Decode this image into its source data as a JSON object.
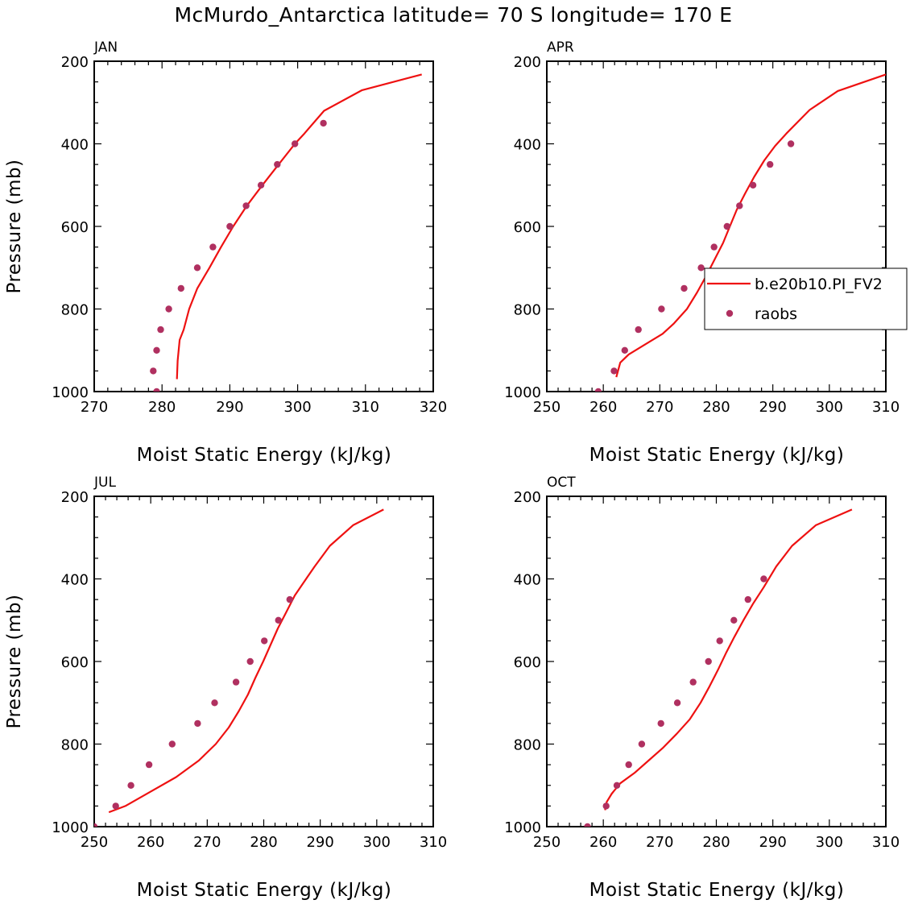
{
  "figure_title": "McMurdo_Antarctica  latitude= 70 S longitude= 170 E",
  "colors": {
    "model_line": "#ee1111",
    "obs_marker": "#b03060",
    "axis": "#000000"
  },
  "legend": {
    "entries": [
      {
        "label": "b.e20b10.PI_FV2",
        "kind": "line"
      },
      {
        "label": "raobs",
        "kind": "marker"
      }
    ]
  },
  "chart_data": [
    {
      "type": "line",
      "title": "JAN",
      "xlabel": "Moist Static Energy (kJ/kg)",
      "ylabel": "Pressure (mb)",
      "xlim": [
        270,
        320
      ],
      "ylim": [
        200,
        1000
      ],
      "y_inverted": true,
      "xticks": [
        270,
        280,
        290,
        300,
        310,
        320
      ],
      "yticks": [
        200,
        400,
        600,
        800,
        1000
      ],
      "show_legend": false,
      "series": [
        {
          "name": "b.e20b10.PI_FV2",
          "kind": "line",
          "points": [
            [
              282.2,
              970
            ],
            [
              282.3,
              925
            ],
            [
              282.6,
              875
            ],
            [
              283.2,
              850
            ],
            [
              284.0,
              800
            ],
            [
              285.2,
              750
            ],
            [
              287.0,
              700
            ],
            [
              288.7,
              650
            ],
            [
              290.5,
              600
            ],
            [
              292.5,
              550
            ],
            [
              294.8,
              500
            ],
            [
              297.2,
              450
            ],
            [
              299.6,
              400
            ],
            [
              301.0,
              375
            ],
            [
              303.9,
              320
            ],
            [
              309.5,
              270
            ],
            [
              318.3,
              232
            ]
          ]
        },
        {
          "name": "raobs",
          "kind": "marker",
          "points": [
            [
              279.2,
              1000
            ],
            [
              278.7,
              950
            ],
            [
              279.2,
              900
            ],
            [
              279.8,
              850
            ],
            [
              281.0,
              800
            ],
            [
              282.8,
              750
            ],
            [
              285.2,
              700
            ],
            [
              287.5,
              650
            ],
            [
              290.0,
              600
            ],
            [
              292.4,
              550
            ],
            [
              294.6,
              500
            ],
            [
              297.0,
              450
            ],
            [
              299.6,
              400
            ],
            [
              303.8,
              350
            ]
          ]
        }
      ]
    },
    {
      "type": "line",
      "title": "APR",
      "xlabel": "Moist Static Energy (kJ/kg)",
      "ylabel": "Pressure (mb)",
      "xlim": [
        250,
        310
      ],
      "ylim": [
        200,
        1000
      ],
      "y_inverted": true,
      "xticks": [
        250,
        260,
        270,
        280,
        290,
        300,
        310
      ],
      "yticks": [
        200,
        400,
        600,
        800,
        1000
      ],
      "show_legend": true,
      "series": [
        {
          "name": "b.e20b10.PI_FV2",
          "kind": "line",
          "points": [
            [
              262.3,
              965
            ],
            [
              263.0,
              930
            ],
            [
              264.5,
              910
            ],
            [
              267.5,
              885
            ],
            [
              270.5,
              860
            ],
            [
              272.5,
              835
            ],
            [
              274.8,
              800
            ],
            [
              276.6,
              760
            ],
            [
              278.2,
              720
            ],
            [
              279.7,
              680
            ],
            [
              281.2,
              640
            ],
            [
              282.4,
              600
            ],
            [
              283.6,
              560
            ],
            [
              285.1,
              520
            ],
            [
              286.7,
              480
            ],
            [
              288.5,
              440
            ],
            [
              290.4,
              405
            ],
            [
              292.4,
              375
            ],
            [
              296.5,
              318
            ],
            [
              301.5,
              272
            ],
            [
              310.0,
              232
            ]
          ]
        },
        {
          "name": "raobs",
          "kind": "marker",
          "points": [
            [
              259.1,
              1000
            ],
            [
              261.9,
              950
            ],
            [
              263.8,
              900
            ],
            [
              266.2,
              850
            ],
            [
              270.3,
              800
            ],
            [
              274.3,
              750
            ],
            [
              277.3,
              700
            ],
            [
              279.6,
              650
            ],
            [
              281.9,
              600
            ],
            [
              284.1,
              550
            ],
            [
              286.5,
              500
            ],
            [
              289.5,
              450
            ],
            [
              293.2,
              400
            ]
          ]
        }
      ]
    },
    {
      "type": "line",
      "title": "JUL",
      "xlabel": "Moist Static Energy (kJ/kg)",
      "ylabel": "Pressure (mb)",
      "xlim": [
        250,
        310
      ],
      "ylim": [
        200,
        1000
      ],
      "y_inverted": true,
      "xticks": [
        250,
        260,
        270,
        280,
        290,
        300,
        310
      ],
      "yticks": [
        200,
        400,
        600,
        800,
        1000
      ],
      "show_legend": false,
      "series": [
        {
          "name": "b.e20b10.PI_FV2",
          "kind": "line",
          "points": [
            [
              252.6,
              965
            ],
            [
              255.5,
              950
            ],
            [
              260.0,
              915
            ],
            [
              264.5,
              880
            ],
            [
              268.5,
              840
            ],
            [
              271.5,
              800
            ],
            [
              273.8,
              760
            ],
            [
              275.6,
              720
            ],
            [
              277.2,
              680
            ],
            [
              278.5,
              640
            ],
            [
              279.9,
              600
            ],
            [
              281.2,
              560
            ],
            [
              282.5,
              520
            ],
            [
              284.0,
              480
            ],
            [
              285.5,
              440
            ],
            [
              287.0,
              410
            ],
            [
              289.0,
              370
            ],
            [
              291.7,
              320
            ],
            [
              295.8,
              270
            ],
            [
              301.2,
              232
            ]
          ]
        },
        {
          "name": "raobs",
          "kind": "marker",
          "points": [
            [
              250.0,
              1000
            ],
            [
              253.8,
              950
            ],
            [
              256.5,
              900
            ],
            [
              259.7,
              850
            ],
            [
              263.8,
              800
            ],
            [
              268.3,
              750
            ],
            [
              271.3,
              700
            ],
            [
              275.1,
              650
            ],
            [
              277.6,
              600
            ],
            [
              280.1,
              550
            ],
            [
              282.6,
              500
            ],
            [
              284.6,
              450
            ]
          ]
        }
      ]
    },
    {
      "type": "line",
      "title": "OCT",
      "xlabel": "Moist Static Energy (kJ/kg)",
      "ylabel": "Pressure (mb)",
      "xlim": [
        250,
        310
      ],
      "ylim": [
        200,
        1000
      ],
      "y_inverted": true,
      "xticks": [
        250,
        260,
        270,
        280,
        290,
        300,
        310
      ],
      "yticks": [
        200,
        400,
        600,
        800,
        1000
      ],
      "show_legend": false,
      "series": [
        {
          "name": "b.e20b10.PI_FV2",
          "kind": "line",
          "points": [
            [
              260.3,
              960
            ],
            [
              260.6,
              940
            ],
            [
              261.5,
              920
            ],
            [
              263.0,
              895
            ],
            [
              265.5,
              870
            ],
            [
              268.0,
              840
            ],
            [
              270.5,
              810
            ],
            [
              273.0,
              775
            ],
            [
              275.3,
              740
            ],
            [
              277.2,
              700
            ],
            [
              278.8,
              660
            ],
            [
              280.3,
              620
            ],
            [
              281.7,
              580
            ],
            [
              283.2,
              540
            ],
            [
              284.8,
              500
            ],
            [
              286.5,
              460
            ],
            [
              288.4,
              420
            ],
            [
              290.6,
              370
            ],
            [
              293.4,
              320
            ],
            [
              297.6,
              270
            ],
            [
              304.0,
              232
            ]
          ]
        },
        {
          "name": "raobs",
          "kind": "marker",
          "points": [
            [
              257.2,
              1000
            ],
            [
              260.5,
              950
            ],
            [
              262.4,
              900
            ],
            [
              264.5,
              850
            ],
            [
              266.8,
              800
            ],
            [
              270.2,
              750
            ],
            [
              273.1,
              700
            ],
            [
              275.9,
              650
            ],
            [
              278.6,
              600
            ],
            [
              280.6,
              550
            ],
            [
              283.1,
              500
            ],
            [
              285.6,
              450
            ],
            [
              288.4,
              400
            ]
          ]
        }
      ]
    }
  ]
}
